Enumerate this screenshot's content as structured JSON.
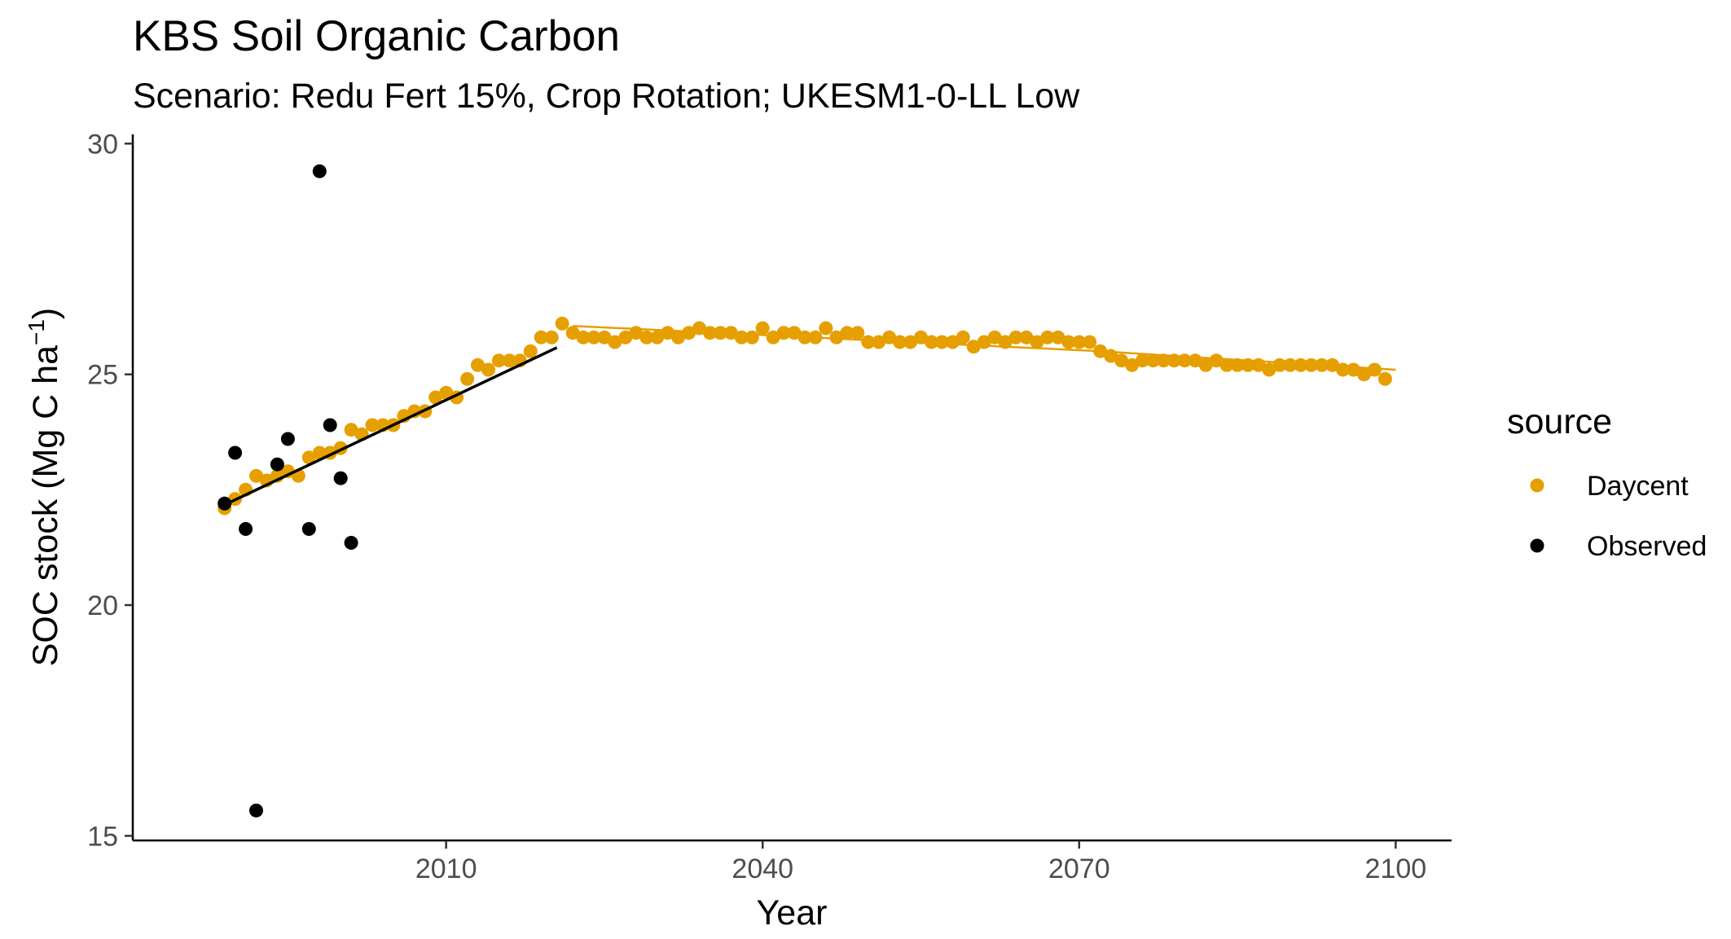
{
  "chart_data": {
    "type": "scatter",
    "title": "KBS Soil Organic Carbon",
    "subtitle": "Scenario: Redu Fert 15%, Crop Rotation; UKESM1-0-LL Low",
    "xlabel": "Year",
    "ylabel_main": "SOC stock (Mg C ha",
    "ylabel_sup": "−1",
    "ylabel_close": ")",
    "xlim": [
      1980.3,
      2105.3
    ],
    "ylim": [
      14.9,
      30.2
    ],
    "x_ticks": [
      2010,
      2040,
      2070,
      2100
    ],
    "x_tick_labels": [
      "2010",
      "2040",
      "2070",
      "2100"
    ],
    "y_ticks": [
      15,
      20,
      25,
      30
    ],
    "y_tick_labels": [
      "15",
      "20",
      "25",
      "30"
    ],
    "grid": false,
    "legend": {
      "title": "source",
      "position": "right"
    },
    "series": [
      {
        "name": "Daycent",
        "color": "#E69F00",
        "x": [
          1989,
          1990,
          1991,
          1992,
          1993,
          1994,
          1995,
          1996,
          1997,
          1998,
          1999,
          2000,
          2001,
          2002,
          2003,
          2004,
          2005,
          2006,
          2007,
          2008,
          2009,
          2010,
          2011,
          2012,
          2013,
          2014,
          2015,
          2016,
          2017,
          2018,
          2019,
          2020,
          2021,
          2022,
          2023,
          2024,
          2025,
          2026,
          2027,
          2028,
          2029,
          2030,
          2031,
          2032,
          2033,
          2034,
          2035,
          2036,
          2037,
          2038,
          2039,
          2040,
          2041,
          2042,
          2043,
          2044,
          2045,
          2046,
          2047,
          2048,
          2049,
          2050,
          2051,
          2052,
          2053,
          2054,
          2055,
          2056,
          2057,
          2058,
          2059,
          2060,
          2061,
          2062,
          2063,
          2064,
          2065,
          2066,
          2067,
          2068,
          2069,
          2070,
          2071,
          2072,
          2073,
          2074,
          2075,
          2076,
          2077,
          2078,
          2079,
          2080,
          2081,
          2082,
          2083,
          2084,
          2085,
          2086,
          2087,
          2088,
          2089,
          2090,
          2091,
          2092,
          2093,
          2094,
          2095,
          2096,
          2097,
          2098,
          2099
        ],
        "y": [
          22.1,
          22.3,
          22.5,
          22.8,
          22.7,
          22.8,
          22.9,
          22.8,
          23.2,
          23.3,
          23.3,
          23.4,
          23.8,
          23.7,
          23.9,
          23.9,
          23.9,
          24.1,
          24.2,
          24.2,
          24.5,
          24.6,
          24.5,
          24.9,
          25.2,
          25.1,
          25.3,
          25.3,
          25.3,
          25.5,
          25.8,
          25.8,
          26.1,
          25.9,
          25.8,
          25.8,
          25.8,
          25.7,
          25.8,
          25.9,
          25.8,
          25.8,
          25.9,
          25.8,
          25.9,
          26.0,
          25.9,
          25.9,
          25.9,
          25.8,
          25.8,
          26.0,
          25.8,
          25.9,
          25.9,
          25.8,
          25.8,
          26.0,
          25.8,
          25.9,
          25.9,
          25.7,
          25.7,
          25.8,
          25.7,
          25.7,
          25.8,
          25.7,
          25.7,
          25.7,
          25.8,
          25.6,
          25.7,
          25.8,
          25.7,
          25.8,
          25.8,
          25.7,
          25.8,
          25.8,
          25.7,
          25.7,
          25.7,
          25.5,
          25.4,
          25.3,
          25.2,
          25.3,
          25.3,
          25.3,
          25.3,
          25.3,
          25.3,
          25.2,
          25.3,
          25.2,
          25.2,
          25.2,
          25.2,
          25.1,
          25.2,
          25.2,
          25.2,
          25.2,
          25.2,
          25.2,
          25.1,
          25.1,
          25.0,
          25.1,
          24.9
        ]
      },
      {
        "name": "Observed",
        "color": "#000000",
        "x": [
          1989,
          1990,
          1991,
          1992,
          1994,
          1995,
          1997,
          1998,
          1999,
          2000,
          2001
        ],
        "y": [
          22.2,
          23.3,
          21.65,
          15.55,
          23.05,
          23.6,
          21.65,
          29.4,
          23.9,
          22.75,
          21.35
        ]
      }
    ],
    "trend_lines": [
      {
        "series": "Observed",
        "color": "#000000",
        "x": [
          1988.5,
          2020.5
        ],
        "y": [
          22.12,
          25.58
        ]
      },
      {
        "series": "Daycent",
        "color": "#E69F00",
        "x": [
          2022,
          2072
        ],
        "y": [
          26.05,
          25.5
        ]
      },
      {
        "series": "Daycent",
        "color": "#E69F00",
        "x": [
          2072,
          2100
        ],
        "y": [
          25.5,
          25.1
        ]
      }
    ]
  }
}
